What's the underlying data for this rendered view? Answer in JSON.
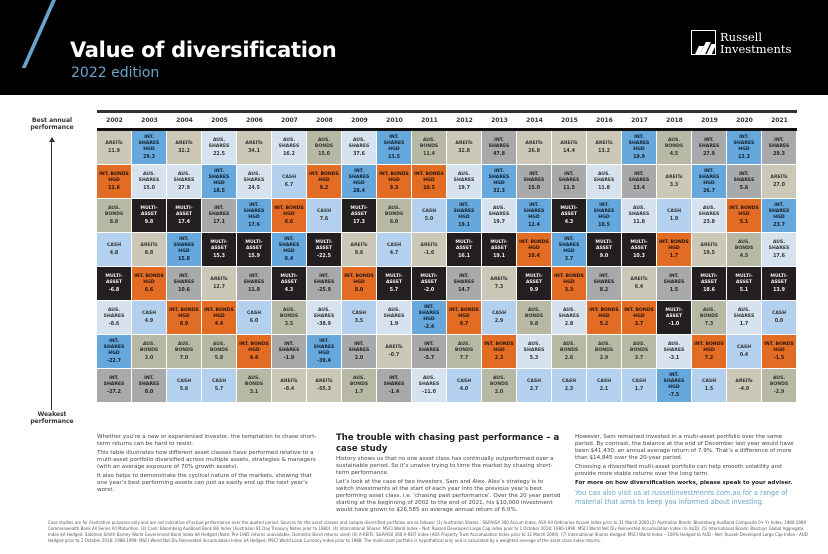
{
  "header": {
    "title": "Value of diversification",
    "subtitle": "2022 edition",
    "logo_line1": "Russell",
    "logo_line2": "Investments"
  },
  "axis": {
    "top_label": "Best annual performance",
    "bottom_label": "Weakest performance"
  },
  "colors": {
    "AREITs": "#cbc8b8",
    "INT. SHARES": "#a7a9ab",
    "INT. SHARES HGD": "#66a8dc",
    "AUS. SHARES": "#d6e3ef",
    "AUS. BONDS": "#b8b9a5",
    "INT. BONDS HGD": "#e36c25",
    "CASH": "#b3d1ee",
    "MULTI-ASSET": "#231f20",
    "brand_blue": "#6aa3c9"
  },
  "table": {
    "years": [
      "2002",
      "2003",
      "2004",
      "2005",
      "2006",
      "2007",
      "2008",
      "2009",
      "2010",
      "2011",
      "2012",
      "2013",
      "2014",
      "2015",
      "2016",
      "2017",
      "2018",
      "2019",
      "2020",
      "2021"
    ],
    "columns": [
      [
        [
          "AREITs",
          "11.9"
        ],
        [
          "INT. BONDS HGD",
          "11.6"
        ],
        [
          "AUS. BONDS",
          "8.8"
        ],
        [
          "CASH",
          "4.8"
        ],
        [
          "MULTI-ASSET",
          "-6.8"
        ],
        [
          "AUS. SHARES",
          "-8.6"
        ],
        [
          "INT. SHARES HGD",
          "-22.7"
        ],
        [
          "INT. SHARES",
          "-27.2"
        ]
      ],
      [
        [
          "INT. SHARES HGD",
          "29.3"
        ],
        [
          "AUS. SHARES",
          "15.0"
        ],
        [
          "MULTI-ASSET",
          "9.8"
        ],
        [
          "AREITs",
          "8.8"
        ],
        [
          "INT. BONDS HGD",
          "6.6"
        ],
        [
          "CASH",
          "4.9"
        ],
        [
          "AUS. BONDS",
          "3.0"
        ],
        [
          "INT. SHARES",
          "0.0"
        ]
      ],
      [
        [
          "AREITs",
          "32.2"
        ],
        [
          "AUS. SHARES",
          "27.9"
        ],
        [
          "MULTI-ASSET",
          "17.4"
        ],
        [
          "INT. SHARES HGD",
          "15.8"
        ],
        [
          "INT. SHARES",
          "10.6"
        ],
        [
          "INT. BONDS HGD",
          "8.9"
        ],
        [
          "AUS. BONDS",
          "7.0"
        ],
        [
          "CASH",
          "5.6"
        ]
      ],
      [
        [
          "AUS. SHARES",
          "22.5"
        ],
        [
          "INT. SHARES HGD",
          "18.5"
        ],
        [
          "INT. SHARES",
          "17.1"
        ],
        [
          "MULTI-ASSET",
          "15.3"
        ],
        [
          "AREITs",
          "12.7"
        ],
        [
          "INT. BONDS HGD",
          "4.4"
        ],
        [
          "AUS. BONDS",
          "5.8"
        ],
        [
          "CASH",
          "5.7"
        ]
      ],
      [
        [
          "AREITs",
          "34.1"
        ],
        [
          "AUS. SHARES",
          "24.5"
        ],
        [
          "INT. SHARES HGD",
          "17.6"
        ],
        [
          "MULTI-ASSET",
          "15.9"
        ],
        [
          "INT. SHARES",
          "11.8"
        ],
        [
          "CASH",
          "6.0"
        ],
        [
          "INT. BONDS HGD",
          "4.4"
        ],
        [
          "AUS. BONDS",
          "3.1"
        ]
      ],
      [
        [
          "AUS. SHARES",
          "16.2"
        ],
        [
          "CASH",
          "6.7"
        ],
        [
          "INT. BONDS HGD",
          "6.6"
        ],
        [
          "INT. SHARES HGD",
          "6.4"
        ],
        [
          "MULTI-ASSET",
          "4.3"
        ],
        [
          "AUS. BONDS",
          "3.5"
        ],
        [
          "INT. SHARES",
          "-1.9"
        ],
        [
          "AREITs",
          "-8.4"
        ]
      ],
      [
        [
          "AUS. BONDS",
          "15.0"
        ],
        [
          "INT. BONDS HGD",
          "9.2"
        ],
        [
          "CASH",
          "7.6"
        ],
        [
          "MULTI-ASSET",
          "-22.5"
        ],
        [
          "INT. SHARES",
          "-25.9"
        ],
        [
          "AUS. SHARES",
          "-38.9"
        ],
        [
          "INT. SHARES HGD",
          "-39.4"
        ],
        [
          "AREITs",
          "-55.3"
        ]
      ],
      [
        [
          "AUS. SHARES",
          "37.6"
        ],
        [
          "INT. SHARES HGD",
          "28.4"
        ],
        [
          "MULTI-ASSET",
          "17.3"
        ],
        [
          "AREITs",
          "9.6"
        ],
        [
          "INT. BONDS HGD",
          "8.0"
        ],
        [
          "CASH",
          "3.5"
        ],
        [
          "INT. SHARES",
          "2.0"
        ],
        [
          "AUS. BONDS",
          "1.7"
        ]
      ],
      [
        [
          "INT. SHARES HGD",
          "13.5"
        ],
        [
          "INT. BONDS HGD",
          "9.3"
        ],
        [
          "AUS. BONDS",
          "6.0"
        ],
        [
          "CASH",
          "4.7"
        ],
        [
          "MULTI-ASSET",
          "5.7"
        ],
        [
          "AUS. SHARES",
          "1.9"
        ],
        [
          "AREITs",
          "-0.7"
        ],
        [
          "INT. SHARES",
          "-1.4"
        ]
      ],
      [
        [
          "AUS. BONDS",
          "11.4"
        ],
        [
          "INT. BONDS HGD",
          "10.5"
        ],
        [
          "CASH",
          "5.0"
        ],
        [
          "AREITs",
          "-1.6"
        ],
        [
          "MULTI-ASSET",
          "-2.0"
        ],
        [
          "INT. SHARES HGD",
          "-2.4"
        ],
        [
          "INT. SHARES",
          "-5.7"
        ],
        [
          "AUS. SHARES",
          "-11.0"
        ]
      ],
      [
        [
          "AREITs",
          "32.8"
        ],
        [
          "AUS. SHARES",
          "19.7"
        ],
        [
          "INT. SHARES HGD",
          "19.1"
        ],
        [
          "MULTI-ASSET",
          "16.1"
        ],
        [
          "INT. SHARES",
          "14.7"
        ],
        [
          "INT. BONDS HGD",
          "9.7"
        ],
        [
          "AUS. BONDS",
          "7.7"
        ],
        [
          "CASH",
          "4.0"
        ]
      ],
      [
        [
          "INT. SHARES",
          "47.8"
        ],
        [
          "INT. SHARES HGD",
          "32.3"
        ],
        [
          "AUS. SHARES",
          "19.7"
        ],
        [
          "MULTI-ASSET",
          "19.1"
        ],
        [
          "AREITs",
          "7.3"
        ],
        [
          "CASH",
          "2.9"
        ],
        [
          "INT. BONDS HGD",
          "2.3"
        ],
        [
          "AUS. BONDS",
          "2.0"
        ]
      ],
      [
        [
          "AREITs",
          "26.8"
        ],
        [
          "INT. SHARES",
          "15.0"
        ],
        [
          "INT. SHARES HGD",
          "12.4"
        ],
        [
          "INT. BONDS HGD",
          "10.4"
        ],
        [
          "MULTI-ASSET",
          "9.9"
        ],
        [
          "AUS. BONDS",
          "9.8"
        ],
        [
          "AUS. SHARES",
          "5.3"
        ],
        [
          "CASH",
          "2.7"
        ]
      ],
      [
        [
          "AREITs",
          "14.4"
        ],
        [
          "INT. SHARES",
          "11.5"
        ],
        [
          "MULTI-ASSET",
          "4.3"
        ],
        [
          "INT. SHARES HGD",
          "3.7"
        ],
        [
          "INT. BONDS HGD",
          "3.3"
        ],
        [
          "AUS. SHARES",
          "2.8"
        ],
        [
          "AUS. BONDS",
          "2.6"
        ],
        [
          "CASH",
          "2.3"
        ]
      ],
      [
        [
          "AREITs",
          "13.2"
        ],
        [
          "AUS. SHARES",
          "11.8"
        ],
        [
          "INT. SHARES HGD",
          "10.5"
        ],
        [
          "MULTI-ASSET",
          "9.0"
        ],
        [
          "INT. SHARES",
          "8.2"
        ],
        [
          "INT. BONDS HGD",
          "5.2"
        ],
        [
          "AUS. BONDS",
          "2.9"
        ],
        [
          "CASH",
          "2.1"
        ]
      ],
      [
        [
          "INT. SHARES HGD",
          "19.9"
        ],
        [
          "INT. SHARES",
          "13.4"
        ],
        [
          "AUS. SHARES",
          "11.8"
        ],
        [
          "MULTI-ASSET",
          "10.3"
        ],
        [
          "AREITs",
          "6.4"
        ],
        [
          "INT. BONDS HGD",
          "3.7"
        ],
        [
          "AUS. BONDS",
          "3.7"
        ],
        [
          "CASH",
          "1.7"
        ]
      ],
      [
        [
          "AUS. BONDS",
          "4.5"
        ],
        [
          "AREITs",
          "3.3"
        ],
        [
          "CASH",
          "1.9"
        ],
        [
          "INT. BONDS HGD",
          "1.7"
        ],
        [
          "INT. SHARES",
          "1.5"
        ],
        [
          "MULTI-ASSET",
          "-1.0"
        ],
        [
          "AUS. SHARES",
          "-3.1"
        ],
        [
          "INT. SHARES HGD",
          "-7.5"
        ]
      ],
      [
        [
          "INT. SHARES",
          "27.9"
        ],
        [
          "INT. SHARES HGD",
          "26.7"
        ],
        [
          "AUS. SHARES",
          "23.8"
        ],
        [
          "AREITs",
          "19.5"
        ],
        [
          "MULTI-ASSET",
          "18.6"
        ],
        [
          "AUS. BONDS",
          "7.3"
        ],
        [
          "INT. BONDS HGD",
          "7.2"
        ],
        [
          "CASH",
          "1.5"
        ]
      ],
      [
        [
          "INT. SHARES HGD",
          "13.3"
        ],
        [
          "INT. SHARES",
          "5.6"
        ],
        [
          "INT. BONDS HGD",
          "5.1"
        ],
        [
          "AUS. BONDS",
          "4.5"
        ],
        [
          "MULTI-ASSET",
          "5.1"
        ],
        [
          "AUS. SHARES",
          "1.7"
        ],
        [
          "CASH",
          "0.4"
        ],
        [
          "AREITs",
          "-4.0"
        ]
      ],
      [
        [
          "INT. SHARES",
          "29.3"
        ],
        [
          "AREITs",
          "27.0"
        ],
        [
          "INT. SHARES HGD",
          "23.7"
        ],
        [
          "AUS. SHARES",
          "17.6"
        ],
        [
          "MULTI-ASSET",
          "13.9"
        ],
        [
          "CASH",
          "0.0"
        ],
        [
          "INT. BONDS HGD",
          "-1.5"
        ],
        [
          "AUS. BONDS",
          "-2.9"
        ]
      ]
    ]
  },
  "intro": [
    "Whether you’re a new or experienced investor, the temptation to chase short-term returns can be hard to resist.",
    "This table illustrates how different asset classes have performed relative to a multi-asset portfolio diversified across multiple assets, strategies & managers (with an average exposure of 70% growth assets).",
    "It also helps to demonstrate the cyclical nature of the markets, showing that one year’s best performing assets can just as easily end up the next year’s worst."
  ],
  "case_study": {
    "heading": "The trouble with chasing past performance – a case study",
    "paragraphs": [
      "History shows us that no one asset class has continually outperformed over a sustainable period. So it’s unwise trying to time the market by chasing short-term performance.",
      "Let’s look at the case of two investors, Sam and Alex. Alex’s strategy is to switch investments at the start of each year into the previous year’s best performing asset class, i.e. ‘chasing past performance’. Over the 20 year period starting at the beginning of 2002 to the end of 2021, his $10,000 investment would have grown to $26,585 an average annual return of 6.0%."
    ]
  },
  "conclusion": {
    "paragraphs": [
      "However, Sam remained invested in a multi-asset portfolio over the same period. By contrast, the balance at the end of December last year would have been $41,430; an annual average return of 7.9%. That’s a difference of more than $14,845 over the 20-year period.",
      "Choosing a diversified multi-asset portfolio can help smooth volatility and provide more stable returns over the long term."
    ],
    "bold_note": "For more on how diversification works, please speak to your adviser.",
    "link_text": "You can also visit us at russellinvestments.com.au for a range of material that aims to keep you informed about investing."
  },
  "footer": "Case studies are for illustrative purposes only and are not indicative of actual performance over the quoted period. Sources for the asset classes and sample diversified portfolios are as follows: (1) Australian Shares : S&P/ASX 300 Accum Index, ASX All Ordinaries Accum Index prior to 31 March 2000 (2) Australian Bonds: Bloomberg AusBond Composite 0+ Yr Index, 1980-1989 Commonwealth Bank All Series All Maturities. (3) Cash: Bloomberg AusBond Bank Bill Index (Australian 91 Day Treasury Notes prior to 1980). (4) International Shares: MSCI World Index – Net; Russell Developed Large Cap index prior to 1 October 2018; 1980-1996: MSCI World Net Div Reinvested Accumulation Index (in AUD). (5) International Bonds: Barclays Global Aggregate Index $A Hedged. Salomon Smith Barney World Government Bond Index $A Hedged (Note: Pre-1985 returns unavailable, Domestic Bond returns used) (6) A-REITs: S&P/ASX 300 A-REIT Index (ASX Property Trust Accumulation Index prior to 31 March 2000). (7) International Shares Hedged: MSCI World Index – 100% Hedged to AUD - Net; Russell Developed Large Cap Index - AUD Hedged prior to 1 October 2018; 1988-1999: MSCI World Net Div Reinvested Accumulation Index $A Hedged, MSCI World Local Currency Index prior to 1988. The multi-asset portfolio is hypothetical only and is calculated by a weighted average of the asset class index returns."
}
